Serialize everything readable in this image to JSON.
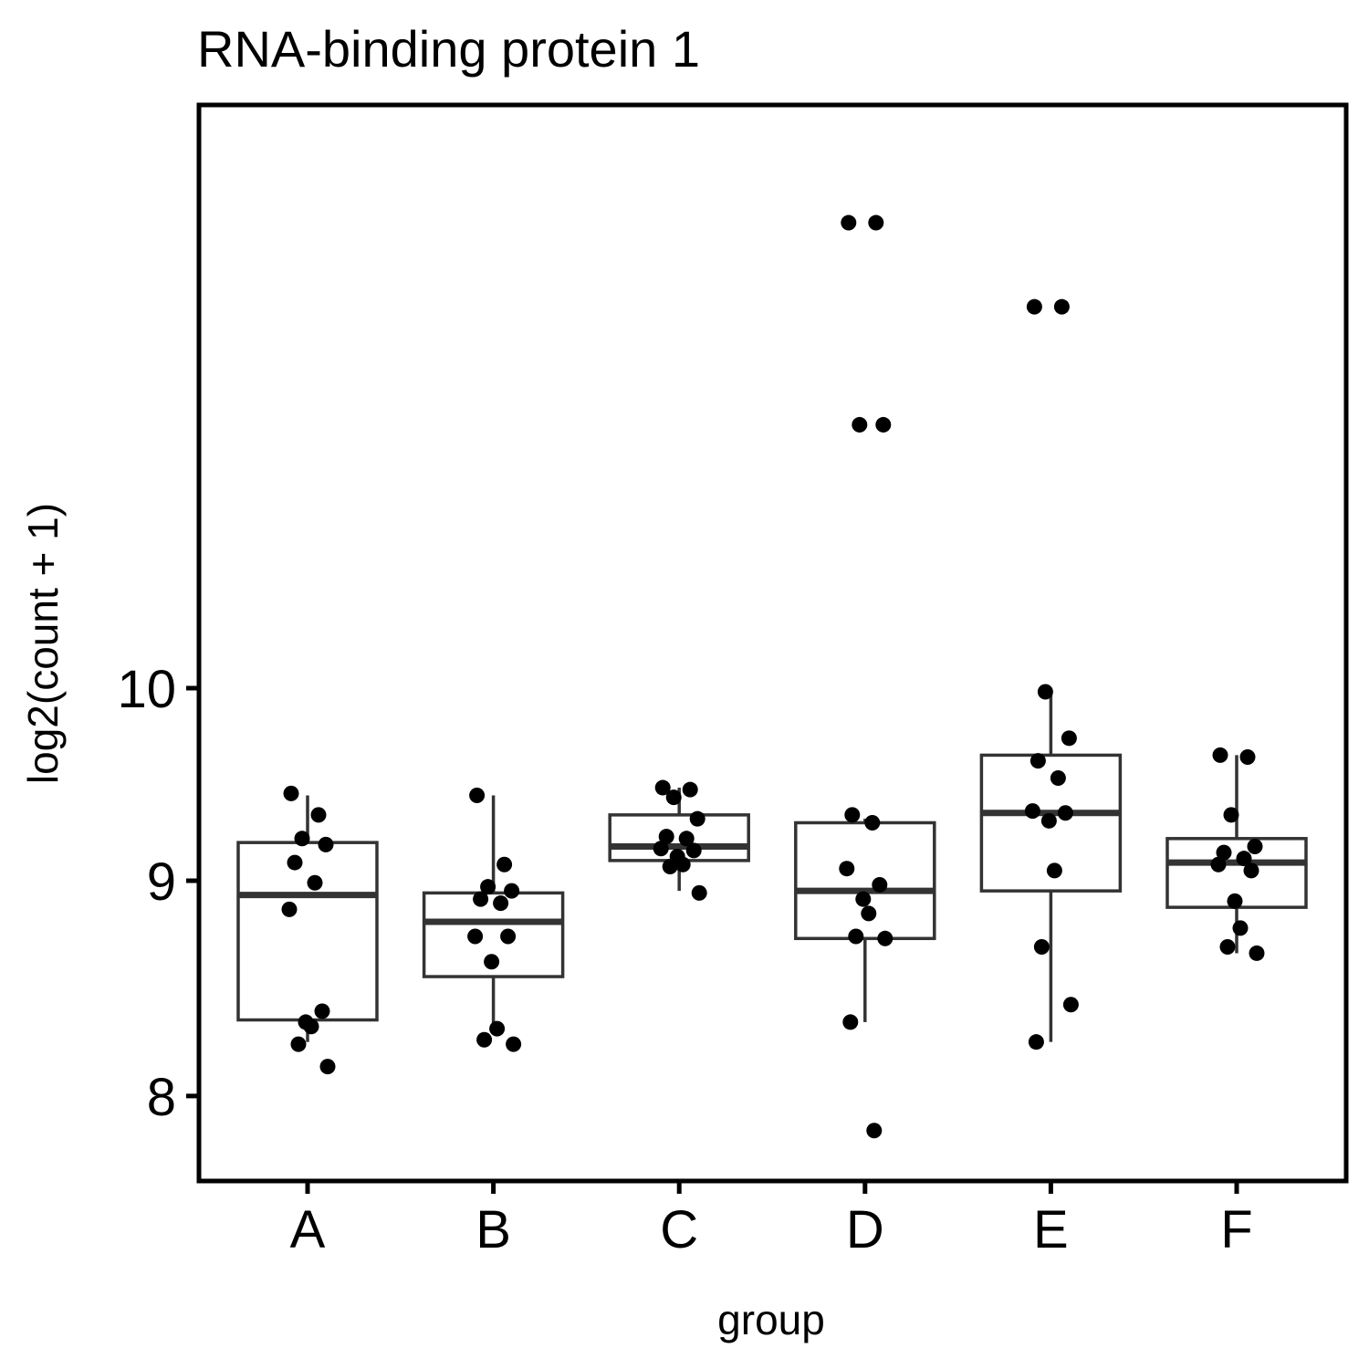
{
  "chart_data": {
    "type": "box",
    "title": "RNA-binding protein 1",
    "xlabel": "group",
    "ylabel": "log2(count + 1)",
    "y_ticks": [
      8,
      9,
      10
    ],
    "y_tick_labels": [
      "8",
      "9",
      "10"
    ],
    "categories": [
      "A",
      "B",
      "C",
      "D",
      "E",
      "F"
    ],
    "colors": {
      "box_line": "#333333",
      "points": "#000000",
      "frame": "#000000"
    },
    "grid": false,
    "legend": "none",
    "groups": [
      {
        "name": "A",
        "box": {
          "whisker_low": 8.24,
          "q1": 8.34,
          "median": 8.93,
          "q3": 9.19,
          "whisker_high": 9.43
        },
        "points": [
          9.44,
          9.33,
          9.21,
          9.18,
          9.09,
          8.99,
          8.86,
          8.38,
          8.33,
          8.31,
          8.23,
          8.13
        ]
      },
      {
        "name": "B",
        "box": {
          "whisker_low": 8.3,
          "q1": 8.54,
          "median": 8.8,
          "q3": 8.94,
          "whisker_high": 9.43
        },
        "points": [
          9.43,
          9.08,
          8.97,
          8.95,
          8.91,
          8.89,
          8.73,
          8.73,
          8.61,
          8.3,
          8.25,
          8.23
        ]
      },
      {
        "name": "C",
        "box": {
          "whisker_low": 8.95,
          "q1": 9.1,
          "median": 9.17,
          "q3": 9.33,
          "whisker_high": 9.47
        },
        "points": [
          9.47,
          9.46,
          9.42,
          9.31,
          9.22,
          9.21,
          9.16,
          9.15,
          9.12,
          9.08,
          9.07,
          8.94
        ]
      },
      {
        "name": "D",
        "box": {
          "whisker_low": 8.33,
          "q1": 8.72,
          "median": 8.95,
          "q3": 9.29,
          "whisker_high": 9.31
        },
        "points": [
          12.9,
          12.9,
          11.55,
          11.55,
          9.33,
          9.29,
          9.06,
          8.98,
          8.91,
          8.84,
          8.73,
          8.72,
          8.33,
          7.85
        ]
      },
      {
        "name": "E",
        "box": {
          "whisker_low": 8.24,
          "q1": 8.95,
          "median": 9.34,
          "q3": 9.64,
          "whisker_high": 9.98
        },
        "points": [
          12.32,
          12.32,
          9.98,
          9.73,
          9.61,
          9.52,
          9.35,
          9.34,
          9.3,
          9.05,
          8.68,
          8.41,
          8.24
        ]
      },
      {
        "name": "F",
        "box": {
          "whisker_low": 8.65,
          "q1": 8.87,
          "median": 9.09,
          "q3": 9.21,
          "whisker_high": 9.64
        },
        "points": [
          9.64,
          9.63,
          9.33,
          9.17,
          9.14,
          9.11,
          9.08,
          9.05,
          8.9,
          8.77,
          8.68,
          8.65
        ]
      }
    ]
  }
}
